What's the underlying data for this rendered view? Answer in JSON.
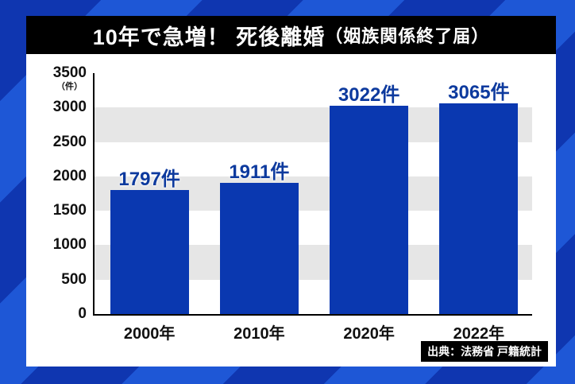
{
  "title": {
    "main": "10年で急増！ 死後離婚",
    "sub": "（姻族関係終了届）"
  },
  "source": "出典：法務省 戸籍統計",
  "colors": {
    "bar": "#0a38b0",
    "label": "#0d3a9e",
    "band": "#e6e6e6",
    "title_bg": "#000000",
    "background": "#1646c4"
  },
  "chart_data": {
    "type": "bar",
    "title": "10年で急増！ 死後離婚（姻族関係終了届）",
    "categories": [
      "2000年",
      "2010年",
      "2020年",
      "2022年"
    ],
    "values": [
      1797,
      1911,
      3022,
      3065
    ],
    "value_labels": [
      "1797件",
      "1911件",
      "3022件",
      "3065件"
    ],
    "xlabel": "",
    "ylabel": "",
    "y_unit": "（件）",
    "ylim": [
      0,
      3500
    ],
    "yticks": [
      0,
      500,
      1000,
      1500,
      2000,
      2500,
      3000,
      3500
    ],
    "grid": "alternating horizontal bands",
    "legend": "none",
    "source": "出典：法務省 戸籍統計"
  }
}
